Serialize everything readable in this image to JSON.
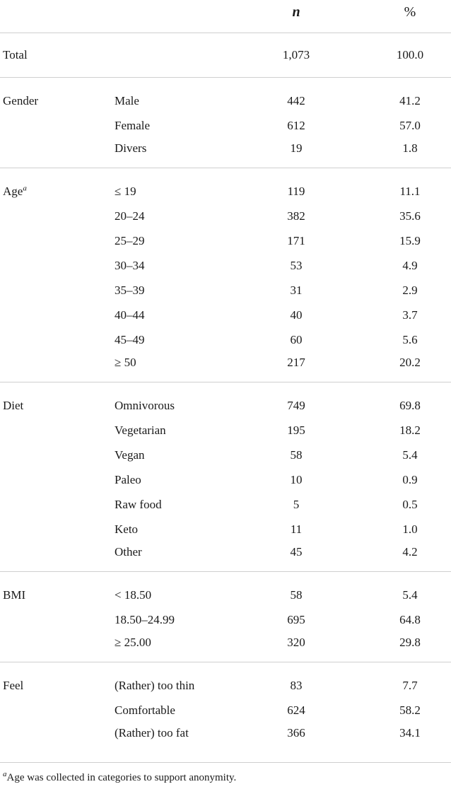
{
  "header": {
    "col_n": "n",
    "col_pct": "%"
  },
  "total": {
    "label": "Total",
    "n": "1,073",
    "pct": "100.0"
  },
  "groups": [
    {
      "label": "Gender",
      "sup": "",
      "rows": [
        {
          "cat": "Male",
          "n": "442",
          "pct": "41.2"
        },
        {
          "cat": "Female",
          "n": "612",
          "pct": "57.0"
        },
        {
          "cat": "Divers",
          "n": "19",
          "pct": "1.8"
        }
      ]
    },
    {
      "label": "Age",
      "sup": "a",
      "rows": [
        {
          "cat": "≤ 19",
          "n": "119",
          "pct": "11.1"
        },
        {
          "cat": "20–24",
          "n": "382",
          "pct": "35.6"
        },
        {
          "cat": "25–29",
          "n": "171",
          "pct": "15.9"
        },
        {
          "cat": "30–34",
          "n": "53",
          "pct": "4.9"
        },
        {
          "cat": "35–39",
          "n": "31",
          "pct": "2.9"
        },
        {
          "cat": "40–44",
          "n": "40",
          "pct": "3.7"
        },
        {
          "cat": "45–49",
          "n": "60",
          "pct": "5.6"
        },
        {
          "cat": "≥ 50",
          "n": "217",
          "pct": "20.2"
        }
      ]
    },
    {
      "label": "Diet",
      "sup": "",
      "rows": [
        {
          "cat": "Omnivorous",
          "n": "749",
          "pct": "69.8"
        },
        {
          "cat": "Vegetarian",
          "n": "195",
          "pct": "18.2"
        },
        {
          "cat": "Vegan",
          "n": "58",
          "pct": "5.4"
        },
        {
          "cat": "Paleo",
          "n": "10",
          "pct": "0.9"
        },
        {
          "cat": "Raw food",
          "n": "5",
          "pct": "0.5"
        },
        {
          "cat": "Keto",
          "n": "11",
          "pct": "1.0"
        },
        {
          "cat": "Other",
          "n": "45",
          "pct": "4.2"
        }
      ]
    },
    {
      "label": "BMI",
      "sup": "",
      "rows": [
        {
          "cat": "< 18.50",
          "n": "58",
          "pct": "5.4"
        },
        {
          "cat": "18.50–24.99",
          "n": "695",
          "pct": "64.8"
        },
        {
          "cat": "≥ 25.00",
          "n": "320",
          "pct": "29.8"
        }
      ]
    },
    {
      "label": "Feel",
      "sup": "",
      "rows": [
        {
          "cat": "(Rather) too thin",
          "n": "83",
          "pct": "7.7"
        },
        {
          "cat": "Comfortable",
          "n": "624",
          "pct": "58.2"
        },
        {
          "cat": "(Rather) too fat",
          "n": "366",
          "pct": "34.1"
        }
      ]
    }
  ],
  "footnote": {
    "marker": "a",
    "text": "Age was collected in categories to support anonymity."
  }
}
